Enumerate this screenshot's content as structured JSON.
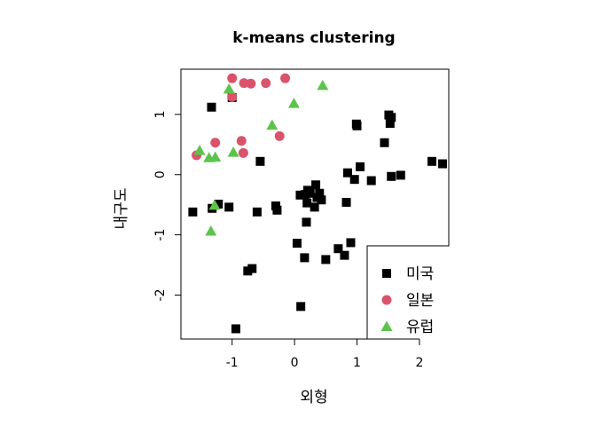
{
  "chart_data": {
    "type": "scatter",
    "title": "k-means clustering",
    "xlabel": "외형",
    "ylabel": "내구도",
    "xlim": [
      -1.82,
      2.47
    ],
    "ylim": [
      -2.73,
      1.75
    ],
    "x_ticks": [
      -1,
      0,
      1,
      2
    ],
    "y_ticks": [
      -2,
      -1,
      0,
      1
    ],
    "x_tick_labels": [
      "-1",
      "0",
      "1",
      "2"
    ],
    "y_tick_labels": [
      "-2",
      "-1",
      "0",
      "1"
    ],
    "grid": false,
    "legend_position": "bottom-right",
    "series": [
      {
        "name": "미국",
        "marker": "square",
        "color": "#000000",
        "points": [
          [
            -1.63,
            -0.62
          ],
          [
            -1.32,
            -0.56
          ],
          [
            -1.22,
            -0.49
          ],
          [
            -1.05,
            -0.54
          ],
          [
            -1.0,
            1.28
          ],
          [
            -1.33,
            1.12
          ],
          [
            -0.55,
            0.22
          ],
          [
            -0.6,
            -0.62
          ],
          [
            -0.3,
            -0.52
          ],
          [
            -0.28,
            -0.59
          ],
          [
            -0.75,
            -1.6
          ],
          [
            -0.68,
            -1.56
          ],
          [
            -0.94,
            -2.56
          ],
          [
            0.04,
            -1.14
          ],
          [
            0.09,
            -0.34
          ],
          [
            0.17,
            -0.33
          ],
          [
            0.2,
            -0.47
          ],
          [
            0.21,
            -0.26
          ],
          [
            0.25,
            -0.31
          ],
          [
            0.32,
            -0.54
          ],
          [
            0.34,
            -0.17
          ],
          [
            0.36,
            -0.38
          ],
          [
            0.4,
            -0.31
          ],
          [
            0.43,
            -0.42
          ],
          [
            0.19,
            -0.79
          ],
          [
            0.16,
            -1.38
          ],
          [
            0.5,
            -1.41
          ],
          [
            0.1,
            -2.19
          ],
          [
            0.7,
            -1.23
          ],
          [
            0.8,
            -1.34
          ],
          [
            0.9,
            -1.13
          ],
          [
            0.83,
            -0.46
          ],
          [
            0.85,
            0.03
          ],
          [
            0.96,
            -0.08
          ],
          [
            1.05,
            0.13
          ],
          [
            1.23,
            -0.1
          ],
          [
            0.99,
            0.84
          ],
          [
            1.0,
            0.81
          ],
          [
            1.44,
            0.53
          ],
          [
            1.51,
            0.99
          ],
          [
            1.53,
            0.85
          ],
          [
            1.55,
            0.95
          ],
          [
            1.55,
            -0.03
          ],
          [
            1.7,
            -0.01
          ],
          [
            2.2,
            0.22
          ],
          [
            2.37,
            0.18
          ]
        ]
      },
      {
        "name": "일본",
        "marker": "circle",
        "color": "#d9536b",
        "points": [
          [
            -1.0,
            1.6
          ],
          [
            -0.81,
            1.52
          ],
          [
            -0.7,
            1.51
          ],
          [
            -0.46,
            1.52
          ],
          [
            -0.15,
            1.6
          ],
          [
            -1.0,
            1.29
          ],
          [
            -1.27,
            0.53
          ],
          [
            -1.57,
            0.32
          ],
          [
            -0.85,
            0.56
          ],
          [
            -0.82,
            0.36
          ],
          [
            -0.24,
            0.64
          ]
        ]
      },
      {
        "name": "유럽",
        "marker": "triangle",
        "color": "#5cc44b",
        "points": [
          [
            -1.05,
            1.42
          ],
          [
            -0.01,
            1.18
          ],
          [
            0.45,
            1.48
          ],
          [
            -0.36,
            0.82
          ],
          [
            -1.52,
            0.4
          ],
          [
            -1.37,
            0.28
          ],
          [
            -1.27,
            0.29
          ],
          [
            -0.98,
            0.37
          ],
          [
            -1.28,
            -0.51
          ],
          [
            -1.34,
            -0.94
          ]
        ]
      }
    ]
  }
}
